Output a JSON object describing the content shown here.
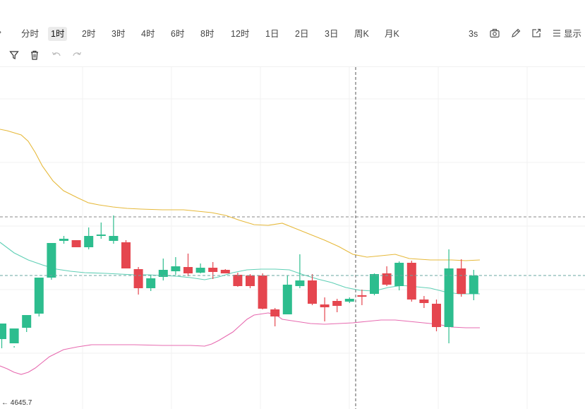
{
  "toolbar": {
    "timeframes": [
      {
        "label": "分时",
        "x": 26
      },
      {
        "label": "1时",
        "x": 68,
        "active": true
      },
      {
        "label": "2时",
        "x": 112
      },
      {
        "label": "3时",
        "x": 154
      },
      {
        "label": "4时",
        "x": 196
      },
      {
        "label": "6时",
        "x": 238
      },
      {
        "label": "8时",
        "x": 280
      },
      {
        "label": "12时",
        "x": 323
      },
      {
        "label": "1日",
        "x": 372
      },
      {
        "label": "2日",
        "x": 414
      },
      {
        "label": "3日",
        "x": 456
      },
      {
        "label": "周K",
        "x": 498
      },
      {
        "label": "月K",
        "x": 541
      }
    ],
    "interval_label": "3s",
    "display_label": "显示"
  },
  "price_label": "← 4645.7",
  "chart_data": {
    "type": "candlestick",
    "candles": [
      [
        480,
        458,
        493,
        478
      ],
      [
        486,
        465,
        492,
        490
      ],
      [
        464,
        446,
        470,
        464
      ],
      [
        444,
        393,
        448,
        436
      ],
      [
        393,
        344,
        396,
        344
      ],
      [
        341,
        338,
        345,
        334
      ],
      [
        340,
        350,
        341,
        350
      ],
      [
        350,
        334,
        353,
        322
      ],
      [
        333,
        332,
        338,
        315
      ],
      [
        341,
        334,
        345,
        305
      ],
      [
        343,
        380,
        345,
        340
      ],
      [
        381,
        408,
        417,
        378
      ],
      [
        408,
        394,
        412,
        389
      ],
      [
        392,
        382,
        397,
        366
      ],
      [
        384,
        377,
        389,
        364
      ],
      [
        378,
        387,
        391,
        359
      ],
      [
        386,
        379,
        387,
        373
      ],
      [
        379,
        385,
        395,
        371
      ],
      [
        382,
        387,
        387,
        381
      ],
      [
        389,
        405,
        406,
        386
      ],
      [
        390,
        405,
        408,
        388
      ],
      [
        390,
        437,
        438,
        387
      ],
      [
        438,
        448,
        462,
        436
      ],
      [
        445,
        403,
        406,
        390
      ],
      [
        405,
        397,
        408,
        360
      ],
      [
        397,
        430,
        432,
        388
      ],
      [
        431,
        435,
        455,
        421
      ],
      [
        426,
        433,
        442,
        423
      ],
      [
        427,
        423,
        429,
        421
      ],
      [
        418,
        418,
        432,
        410
      ],
      [
        416,
        388,
        418,
        387
      ],
      [
        387,
        403,
        405,
        377
      ],
      [
        405,
        372,
        411,
        370
      ],
      [
        372,
        424,
        427,
        369
      ],
      [
        424,
        429,
        436,
        419
      ],
      [
        430,
        463,
        469,
        424
      ],
      [
        463,
        380,
        486,
        353
      ],
      [
        380,
        416,
        420,
        367
      ],
      [
        416,
        390,
        425,
        382
      ]
    ],
    "upper_band": [
      [
        0,
        183
      ],
      [
        10,
        185
      ],
      [
        30,
        191
      ],
      [
        40,
        200
      ],
      [
        50,
        216
      ],
      [
        60,
        235
      ],
      [
        75,
        256
      ],
      [
        90,
        270
      ],
      [
        110,
        280
      ],
      [
        125,
        287
      ],
      [
        140,
        290
      ],
      [
        160,
        293
      ],
      [
        180,
        295
      ],
      [
        200,
        296
      ],
      [
        230,
        297
      ],
      [
        260,
        297
      ],
      [
        280,
        299
      ],
      [
        300,
        301
      ],
      [
        320,
        305
      ],
      [
        340,
        312
      ],
      [
        360,
        318
      ],
      [
        380,
        319
      ],
      [
        400,
        316
      ],
      [
        420,
        324
      ],
      [
        440,
        332
      ],
      [
        460,
        340
      ],
      [
        480,
        349
      ],
      [
        500,
        360
      ],
      [
        520,
        364
      ],
      [
        540,
        362
      ],
      [
        560,
        360
      ],
      [
        580,
        366
      ],
      [
        610,
        368
      ],
      [
        640,
        368
      ],
      [
        660,
        369
      ],
      [
        680,
        368
      ]
    ],
    "middle_band": [
      [
        0,
        343
      ],
      [
        20,
        358
      ],
      [
        40,
        368
      ],
      [
        60,
        375
      ],
      [
        80,
        381
      ],
      [
        100,
        384
      ],
      [
        120,
        386
      ],
      [
        150,
        387
      ],
      [
        170,
        388
      ],
      [
        190,
        389
      ],
      [
        210,
        389
      ],
      [
        230,
        390
      ],
      [
        250,
        391
      ],
      [
        270,
        393
      ],
      [
        290,
        396
      ],
      [
        310,
        392
      ],
      [
        330,
        386
      ],
      [
        350,
        382
      ],
      [
        370,
        381
      ],
      [
        390,
        381
      ],
      [
        410,
        382
      ],
      [
        430,
        389
      ],
      [
        450,
        395
      ],
      [
        470,
        400
      ],
      [
        490,
        407
      ],
      [
        510,
        411
      ],
      [
        530,
        412
      ],
      [
        550,
        407
      ],
      [
        570,
        404
      ],
      [
        590,
        406
      ],
      [
        610,
        408
      ],
      [
        630,
        413
      ],
      [
        650,
        416
      ],
      [
        670,
        416
      ],
      [
        680,
        416
      ]
    ],
    "lower_band": [
      [
        0,
        518
      ],
      [
        10,
        522
      ],
      [
        20,
        527
      ],
      [
        30,
        530
      ],
      [
        40,
        527
      ],
      [
        50,
        521
      ],
      [
        60,
        513
      ],
      [
        70,
        505
      ],
      [
        90,
        495
      ],
      [
        110,
        491
      ],
      [
        130,
        488
      ],
      [
        160,
        488
      ],
      [
        190,
        488
      ],
      [
        230,
        489
      ],
      [
        270,
        489
      ],
      [
        290,
        490
      ],
      [
        300,
        487
      ],
      [
        310,
        482
      ],
      [
        320,
        476
      ],
      [
        330,
        470
      ],
      [
        340,
        461
      ],
      [
        350,
        452
      ],
      [
        360,
        446
      ],
      [
        380,
        443
      ],
      [
        390,
        445
      ],
      [
        400,
        452
      ],
      [
        420,
        455
      ],
      [
        440,
        458
      ],
      [
        460,
        459
      ],
      [
        480,
        458
      ],
      [
        500,
        457
      ],
      [
        520,
        455
      ],
      [
        540,
        453
      ],
      [
        560,
        453
      ],
      [
        580,
        455
      ],
      [
        600,
        457
      ],
      [
        620,
        459
      ],
      [
        640,
        463
      ],
      [
        660,
        464
      ],
      [
        680,
        464
      ]
    ],
    "crosshair": {
      "x": 504,
      "y": 390
    },
    "dashed_hline_y": 307,
    "x_range": [
      0,
      829
    ],
    "y_range": [
      95,
      579
    ],
    "colors": {
      "up": "#2dbd8e",
      "down": "#e5464f",
      "upper_band": "#e6b93b",
      "middle_band": "#5fcfb5",
      "lower_band": "#e76bb0",
      "grid": "#f2f2f2",
      "crosshair": "#555555",
      "dashed_line": "#6aa7a0"
    }
  }
}
